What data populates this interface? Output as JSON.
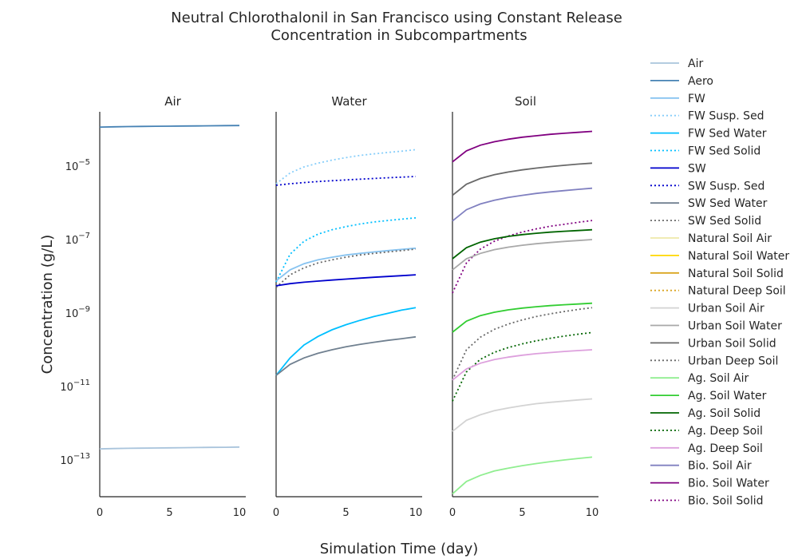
{
  "chart_data": {
    "type": "line",
    "title_line1": "Neutral Chlorothalonil in San Francisco using Constant Release",
    "title_line2": "Concentration in Subcompartments",
    "xlabel": "Simulation Time (day)",
    "ylabel": "Concentration (g/L)",
    "y_scale": "log",
    "ylim": [
      1e-14,
      0.0003
    ],
    "xlim": [
      0,
      10.5
    ],
    "x_ticks": [
      "0",
      "5",
      "10"
    ],
    "y_ticks": [
      {
        "base": "10",
        "exp": "−5",
        "value": 1e-05
      },
      {
        "base": "10",
        "exp": "−7",
        "value": 1e-07
      },
      {
        "base": "10",
        "exp": "−9",
        "value": 1e-09
      },
      {
        "base": "10",
        "exp": "−11",
        "value": 1e-11
      },
      {
        "base": "10",
        "exp": "−13",
        "value": 1e-13
      }
    ],
    "x": [
      0,
      1,
      2,
      3,
      4,
      5,
      6,
      7,
      8,
      9,
      10
    ],
    "legend": [
      {
        "name": "Air",
        "color": "#a9c4dc",
        "dash": false
      },
      {
        "name": "Aero",
        "color": "#4682b4",
        "dash": false
      },
      {
        "name": "FW",
        "color": "#87c3f0",
        "dash": false
      },
      {
        "name": "FW Susp. Sed",
        "color": "#87cefa",
        "dash": true
      },
      {
        "name": "FW Sed Water",
        "color": "#00bfff",
        "dash": false
      },
      {
        "name": "FW Sed Solid",
        "color": "#00bfff",
        "dash": true
      },
      {
        "name": "SW",
        "color": "#0000cd",
        "dash": false
      },
      {
        "name": "SW Susp. Sed",
        "color": "#0000cd",
        "dash": true
      },
      {
        "name": "SW Sed Water",
        "color": "#708090",
        "dash": false
      },
      {
        "name": "SW Sed Solid",
        "color": "#696969",
        "dash": true
      },
      {
        "name": "Natural Soil Air",
        "color": "#eee8aa",
        "dash": false
      },
      {
        "name": "Natural Soil Water",
        "color": "#ffd700",
        "dash": false
      },
      {
        "name": "Natural Soil Solid",
        "color": "#daa520",
        "dash": false
      },
      {
        "name": "Natural Deep Soil",
        "color": "#daa520",
        "dash": true
      },
      {
        "name": "Urban Soil Air",
        "color": "#d3d3d3",
        "dash": false
      },
      {
        "name": "Urban Soil Water",
        "color": "#a9a9a9",
        "dash": false
      },
      {
        "name": "Urban Soil Solid",
        "color": "#696969",
        "dash": false
      },
      {
        "name": "Urban Deep Soil",
        "color": "#696969",
        "dash": true
      },
      {
        "name": "Ag. Soil Air",
        "color": "#90ee90",
        "dash": false
      },
      {
        "name": "Ag. Soil Water",
        "color": "#32cd32",
        "dash": false
      },
      {
        "name": "Ag. Soil Solid",
        "color": "#006400",
        "dash": false
      },
      {
        "name": "Ag. Deep Soil",
        "color": "#006400",
        "dash": true
      },
      {
        "name": "Ag. Deep Soil",
        "color": "#dda0dd",
        "dash": false
      },
      {
        "name": "Bio. Soil Air",
        "color": "#8080c0",
        "dash": false
      },
      {
        "name": "Bio. Soil Water",
        "color": "#800080",
        "dash": false
      },
      {
        "name": "Bio. Soil Solid",
        "color": "#800080",
        "dash": true
      }
    ],
    "panels": [
      {
        "title": "Air",
        "series": [
          {
            "color": "#4682b4",
            "dash": false,
            "values": [
              0.000115,
              0.000117,
              0.000119,
              0.00012,
              0.000121,
              0.000122,
              0.000123,
              0.000124,
              0.000125,
              0.000126,
              0.000127
            ]
          },
          {
            "color": "#a9c4dc",
            "dash": false,
            "values": [
              2e-13,
              2.05e-13,
              2.08e-13,
              2.1e-13,
              2.12e-13,
              2.14e-13,
              2.16e-13,
              2.18e-13,
              2.2e-13,
              2.22e-13,
              2.25e-13
            ]
          }
        ]
      },
      {
        "title": "Water",
        "series": [
          {
            "color": "#87cefa",
            "dash": true,
            "values": [
              3.3e-06,
              6.5e-06,
              9.5e-06,
              1.2e-05,
              1.45e-05,
              1.7e-05,
              1.95e-05,
              2.15e-05,
              2.35e-05,
              2.55e-05,
              2.8e-05
            ]
          },
          {
            "color": "#0000cd",
            "dash": true,
            "values": [
              3e-06,
              3.3e-06,
              3.55e-06,
              3.8e-06,
              4e-06,
              4.2e-06,
              4.4e-06,
              4.6e-06,
              4.8e-06,
              5e-06,
              5.2e-06
            ]
          },
          {
            "color": "#00bfff",
            "dash": true,
            "values": [
              7e-09,
              4e-08,
              9e-08,
              1.4e-07,
              1.85e-07,
              2.25e-07,
              2.65e-07,
              3e-07,
              3.3e-07,
              3.6e-07,
              3.9e-07
            ]
          },
          {
            "color": "#87c3f0",
            "dash": false,
            "values": [
              7.5e-09,
              1.5e-08,
              2.2e-08,
              2.8e-08,
              3.3e-08,
              3.8e-08,
              4.2e-08,
              4.6e-08,
              5e-08,
              5.4e-08,
              5.8e-08
            ]
          },
          {
            "color": "#696969",
            "dash": true,
            "values": [
              5e-09,
              1.1e-08,
              1.7e-08,
              2.3e-08,
              2.8e-08,
              3.3e-08,
              3.8e-08,
              4.2e-08,
              4.6e-08,
              5e-08,
              5.5e-08
            ]
          },
          {
            "color": "#0000cd",
            "dash": false,
            "values": [
              5.5e-09,
              6.3e-09,
              6.9e-09,
              7.4e-09,
              7.9e-09,
              8.4e-09,
              8.9e-09,
              9.4e-09,
              9.9e-09,
              1.04e-08,
              1.1e-08
            ]
          },
          {
            "color": "#00bfff",
            "dash": false,
            "values": [
              2e-11,
              6e-11,
              1.35e-10,
              2.3e-10,
              3.5e-10,
              4.8e-10,
              6.3e-10,
              8e-10,
              9.8e-10,
              1.2e-09,
              1.4e-09
            ]
          },
          {
            "color": "#708090",
            "dash": false,
            "values": [
              2e-11,
              4e-11,
              6e-11,
              8e-11,
              1e-10,
              1.2e-10,
              1.4e-10,
              1.6e-10,
              1.8e-10,
              2e-10,
              2.25e-10
            ]
          }
        ]
      },
      {
        "title": "Soil",
        "series": [
          {
            "color": "#800080",
            "dash": false,
            "values": [
              1.3e-05,
              2.6e-05,
              3.7e-05,
              4.6e-05,
              5.4e-05,
              6.1e-05,
              6.7e-05,
              7.3e-05,
              7.8e-05,
              8.3e-05,
              8.8e-05
            ]
          },
          {
            "color": "#696969",
            "dash": false,
            "values": [
              1.6e-06,
              3.2e-06,
              4.6e-06,
              5.8e-06,
              6.9e-06,
              7.9e-06,
              8.8e-06,
              9.7e-06,
              1.05e-05,
              1.13e-05,
              1.2e-05
            ]
          },
          {
            "color": "#8080c0",
            "dash": false,
            "values": [
              3.2e-07,
              6.5e-07,
              9.3e-07,
              1.18e-06,
              1.4e-06,
              1.6e-06,
              1.8e-06,
              1.98e-06,
              2.15e-06,
              2.32e-06,
              2.5e-06
            ]
          },
          {
            "color": "#800080",
            "dash": true,
            "values": [
              3.5e-09,
              2.3e-08,
              5.5e-08,
              9e-08,
              1.25e-07,
              1.6e-07,
              1.95e-07,
              2.3e-07,
              2.6e-07,
              2.95e-07,
              3.3e-07
            ]
          },
          {
            "color": "#006400",
            "dash": false,
            "values": [
              3e-08,
              6e-08,
              8.5e-08,
              1.05e-07,
              1.22e-07,
              1.36e-07,
              1.48e-07,
              1.59e-07,
              1.68e-07,
              1.76e-07,
              1.85e-07
            ]
          },
          {
            "color": "#a9a9a9",
            "dash": false,
            "values": [
              1.5e-08,
              3e-08,
              4.2e-08,
              5.3e-08,
              6.2e-08,
              7e-08,
              7.7e-08,
              8.3e-08,
              8.9e-08,
              9.4e-08,
              1e-07
            ]
          },
          {
            "color": "#32cd32",
            "dash": false,
            "values": [
              3e-10,
              6e-10,
              8.5e-10,
              1.05e-09,
              1.22e-09,
              1.36e-09,
              1.48e-09,
              1.59e-09,
              1.68e-09,
              1.76e-09,
              1.85e-09
            ]
          },
          {
            "color": "#696969",
            "dash": true,
            "values": [
              1.5e-11,
              1e-10,
              2.2e-10,
              3.6e-10,
              5e-10,
              6.5e-10,
              8e-10,
              9.5e-10,
              1.1e-09,
              1.25e-09,
              1.4e-09
            ]
          },
          {
            "color": "#006400",
            "dash": true,
            "values": [
              4e-12,
              2.5e-11,
              5.5e-11,
              8.5e-11,
              1.15e-10,
              1.45e-10,
              1.75e-10,
              2.05e-10,
              2.35e-10,
              2.65e-10,
              2.95e-10
            ]
          },
          {
            "color": "#dda0dd",
            "dash": false,
            "values": [
              1.5e-11,
              3e-11,
              4.3e-11,
              5.4e-11,
              6.3e-11,
              7.1e-11,
              7.8e-11,
              8.4e-11,
              9e-11,
              9.5e-11,
              1e-10
            ]
          },
          {
            "color": "#d3d3d3",
            "dash": false,
            "values": [
              6e-13,
              1.2e-12,
              1.7e-12,
              2.2e-12,
              2.6e-12,
              3e-12,
              3.4e-12,
              3.7e-12,
              4e-12,
              4.3e-12,
              4.6e-12
            ]
          },
          {
            "color": "#90ee90",
            "dash": false,
            "values": [
              1.2e-14,
              2.6e-14,
              3.8e-14,
              5e-14,
              6e-14,
              7e-14,
              8e-14,
              9e-14,
              1e-13,
              1.1e-13,
              1.2e-13
            ]
          }
        ]
      }
    ]
  }
}
